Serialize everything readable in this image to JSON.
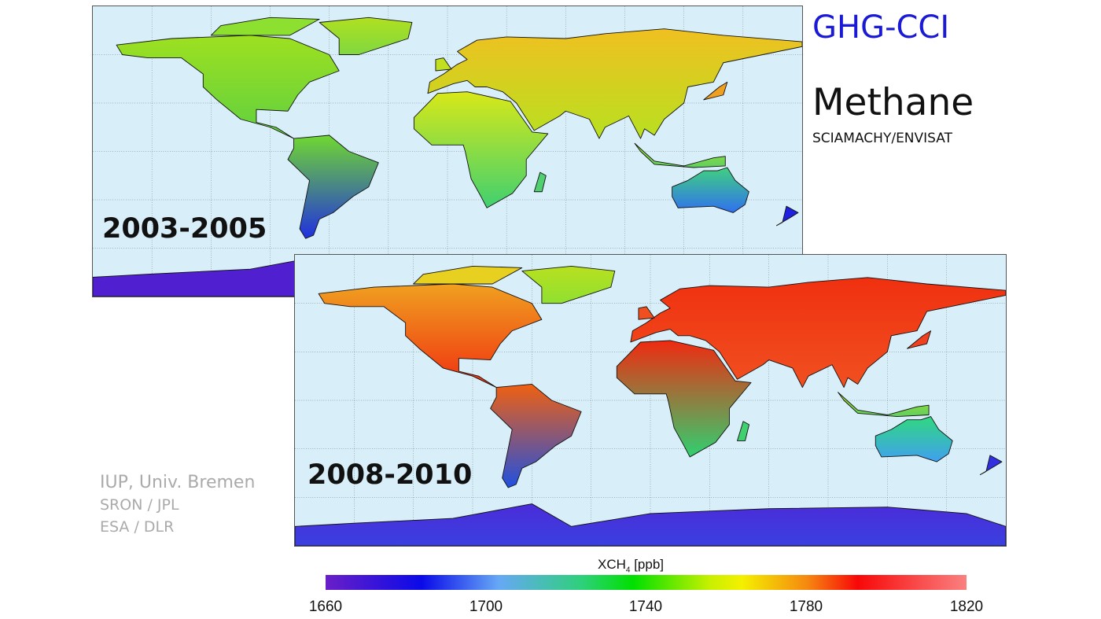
{
  "header": {
    "brand": "GHG-CCI",
    "title": "Methane",
    "subtitle": "SCIAMACHY/ENVISAT"
  },
  "maps": [
    {
      "period": "2003-2005"
    },
    {
      "period": "2008-2010"
    }
  ],
  "credits": [
    "IUP, Univ. Bremen",
    "SRON / JPL",
    "ESA / DLR"
  ],
  "colorbar": {
    "label": "XCH",
    "label_sub": "4",
    "label_unit": " [ppb]",
    "ticks": [
      "1660",
      "1700",
      "1740",
      "1780",
      "1820"
    ],
    "range": [
      1660,
      1820
    ]
  }
}
